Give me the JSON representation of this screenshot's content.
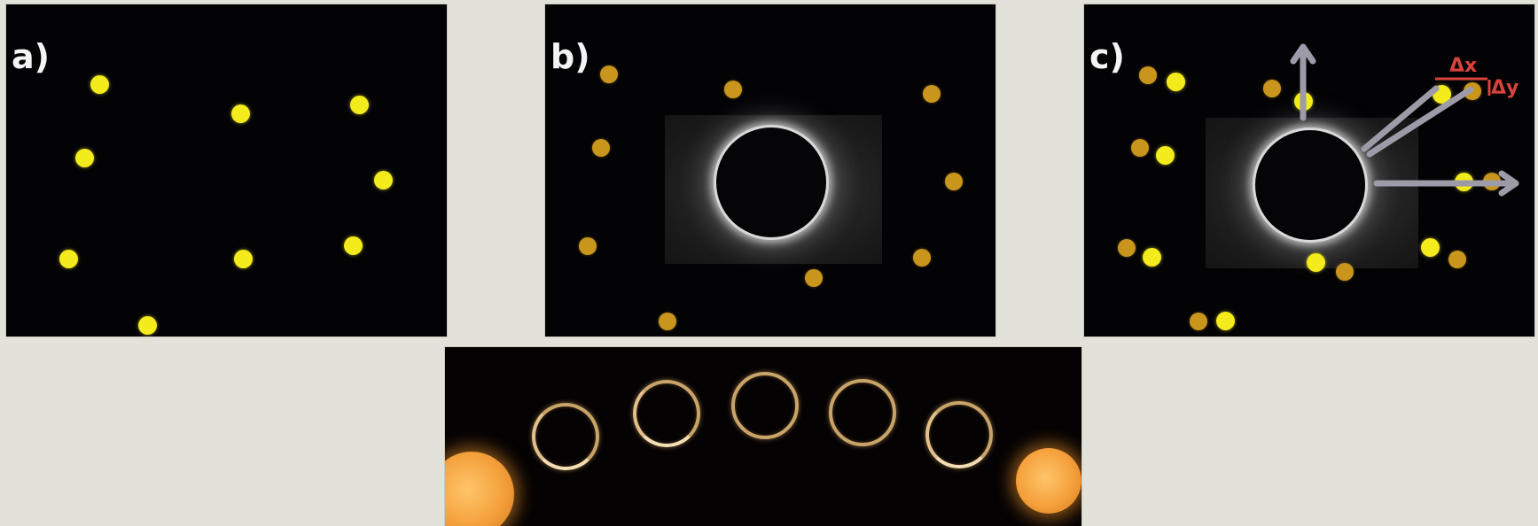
{
  "panels": {
    "a": {
      "label": "a)"
    },
    "b": {
      "label": "b)"
    },
    "c": {
      "label": "c)",
      "delta_x": "Δx",
      "delta_y": "Δy"
    }
  },
  "colors": {
    "background": "#e2e2d8",
    "panel": "#030306",
    "star_bright": "#f3eb1c",
    "star_dim": "#c9951c",
    "arrow": "#9d9ba8",
    "delta": "#d9433b",
    "ring": "#c8a468",
    "sun": "#f4a03b"
  }
}
